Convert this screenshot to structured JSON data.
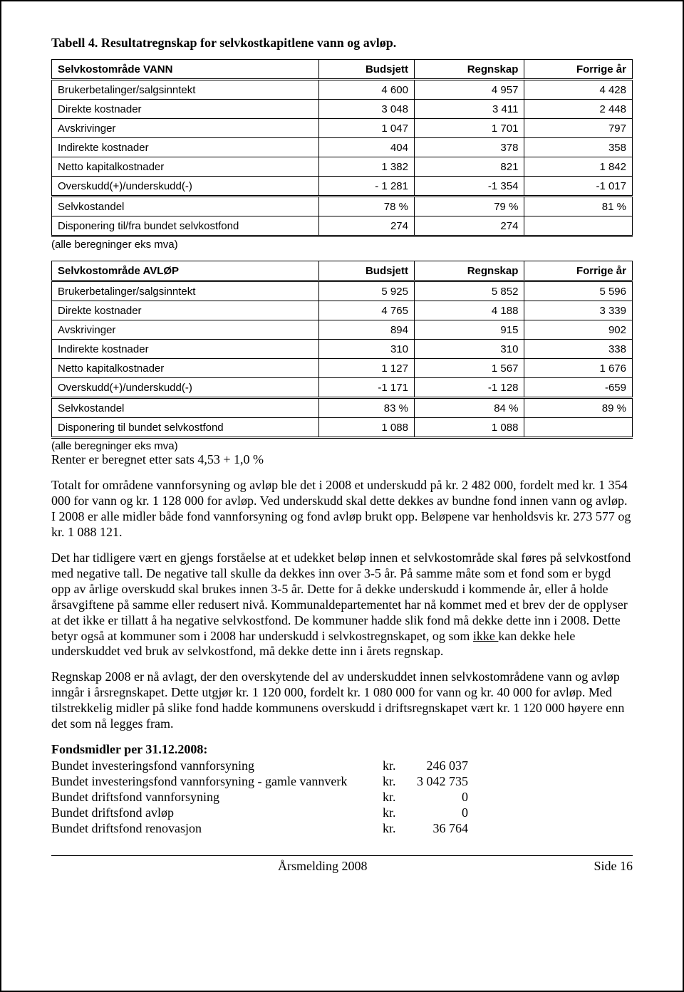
{
  "title": "Tabell 4. Resultatregnskap for selvkostkapitlene vann og avløp.",
  "tableVann": {
    "header": [
      "Selvkostområde VANN",
      "Budsjett",
      "Regnskap",
      "Forrige år"
    ],
    "rows": [
      [
        "Brukerbetalinger/salgsinntekt",
        "4 600",
        "4 957",
        "4 428"
      ],
      [
        "Direkte kostnader",
        "3 048",
        "3 411",
        "2 448"
      ],
      [
        "Avskrivinger",
        "1 047",
        "1 701",
        "797"
      ],
      [
        "Indirekte kostnader",
        "404",
        "378",
        "358"
      ],
      [
        "Netto kapitalkostnader",
        "1 382",
        "821",
        "1 842"
      ],
      [
        "Overskudd(+)/underskudd(-)",
        "- 1 281",
        "-1 354",
        "-1 017"
      ],
      [
        "Selvkostandel",
        "78 %",
        "79 %",
        "81 %"
      ],
      [
        "Disponering til/fra bundet selvkostfond",
        "274",
        "274",
        ""
      ]
    ]
  },
  "note1": "(alle beregninger eks mva)",
  "tableAvlop": {
    "header": [
      "Selvkostområde AVLØP",
      "Budsjett",
      "Regnskap",
      "Forrige år"
    ],
    "rows": [
      [
        "Brukerbetalinger/salgsinntekt",
        "5 925",
        "5 852",
        "5 596"
      ],
      [
        "Direkte kostnader",
        "4 765",
        "4 188",
        "3 339"
      ],
      [
        "Avskrivinger",
        "894",
        "915",
        "902"
      ],
      [
        "Indirekte kostnader",
        "310",
        "310",
        "338"
      ],
      [
        "Netto kapitalkostnader",
        "1 127",
        "1 567",
        "1 676"
      ],
      [
        "Overskudd(+)/underskudd(-)",
        "-1 171",
        "-1 128",
        "-659"
      ],
      [
        "Selvkostandel",
        "83 %",
        "84 %",
        "89 %"
      ],
      [
        "Disponering til bundet selvkostfond",
        "1 088",
        "1 088",
        ""
      ]
    ]
  },
  "note2": "(alle beregninger eks mva)",
  "renter": "Renter er beregnet etter sats 4,53 + 1,0 %",
  "para1": "Totalt for områdene vannforsyning og avløp ble det i 2008 et underskudd på kr. 2 482 000, fordelt med kr. 1 354 000 for vann og kr. 1 128 000 for avløp. Ved underskudd skal dette dekkes av bundne fond innen vann og avløp. I 2008 er alle midler både fond vannforsyning og fond avløp brukt opp. Beløpene var henholdsvis kr. 273 577 og kr. 1 088 121.",
  "para2a": "Det har tidligere vært en gjengs forståelse at et udekket beløp innen et selvkostområde skal føres på selvkostfond med negative tall. De negative tall skulle da dekkes inn over 3-5 år. På samme måte som et fond som er bygd opp av årlige overskudd skal brukes innen 3-5 år. Dette for å dekke underskudd i kommende år, eller å holde årsavgiftene på samme eller redusert nivå. Kommunaldepartementet har nå kommet med et brev der de opplyser at det ikke er tillatt å ha negative selvkostfond. De kommuner hadde slik fond må dekke dette inn i 2008. Dette betyr også at kommuner som i 2008 har underskudd i selvkostregnskapet, og som ",
  "para2u": "ikke ",
  "para2b": "kan dekke hele underskuddet ved bruk av selvkostfond, må dekke dette inn i årets regnskap.",
  "para3": "Regnskap 2008 er nå avlagt, der den overskytende del av underskuddet innen selvkostområdene vann og avløp inngår i årsregnskapet. Dette utgjør kr. 1 120 000, fordelt kr. 1 080 000 for vann og kr. 40 000 for avløp. Med tilstrekkelig midler på slike fond hadde kommunens overskudd i driftsregnskapet vært kr. 1 120 000 høyere enn det som nå legges fram.",
  "fundsHeader": "Fondsmidler per 31.12.2008:",
  "funds": [
    {
      "label": "Bundet investeringsfond vannforsyning",
      "kr": "kr.",
      "val": "246 037"
    },
    {
      "label": "Bundet investeringsfond vannforsyning - gamle vannverk",
      "kr": "kr.",
      "val": "3 042 735"
    },
    {
      "label": "Bundet driftsfond vannforsyning",
      "kr": "kr.",
      "val": "0"
    },
    {
      "label": "Bundet driftsfond avløp",
      "kr": "kr.",
      "val": "0"
    },
    {
      "label": "Bundet driftsfond renovasjon",
      "kr": "kr.",
      "val": "36 764"
    }
  ],
  "footerLeft": "Årsmelding 2008",
  "footerRight": "Side  16"
}
